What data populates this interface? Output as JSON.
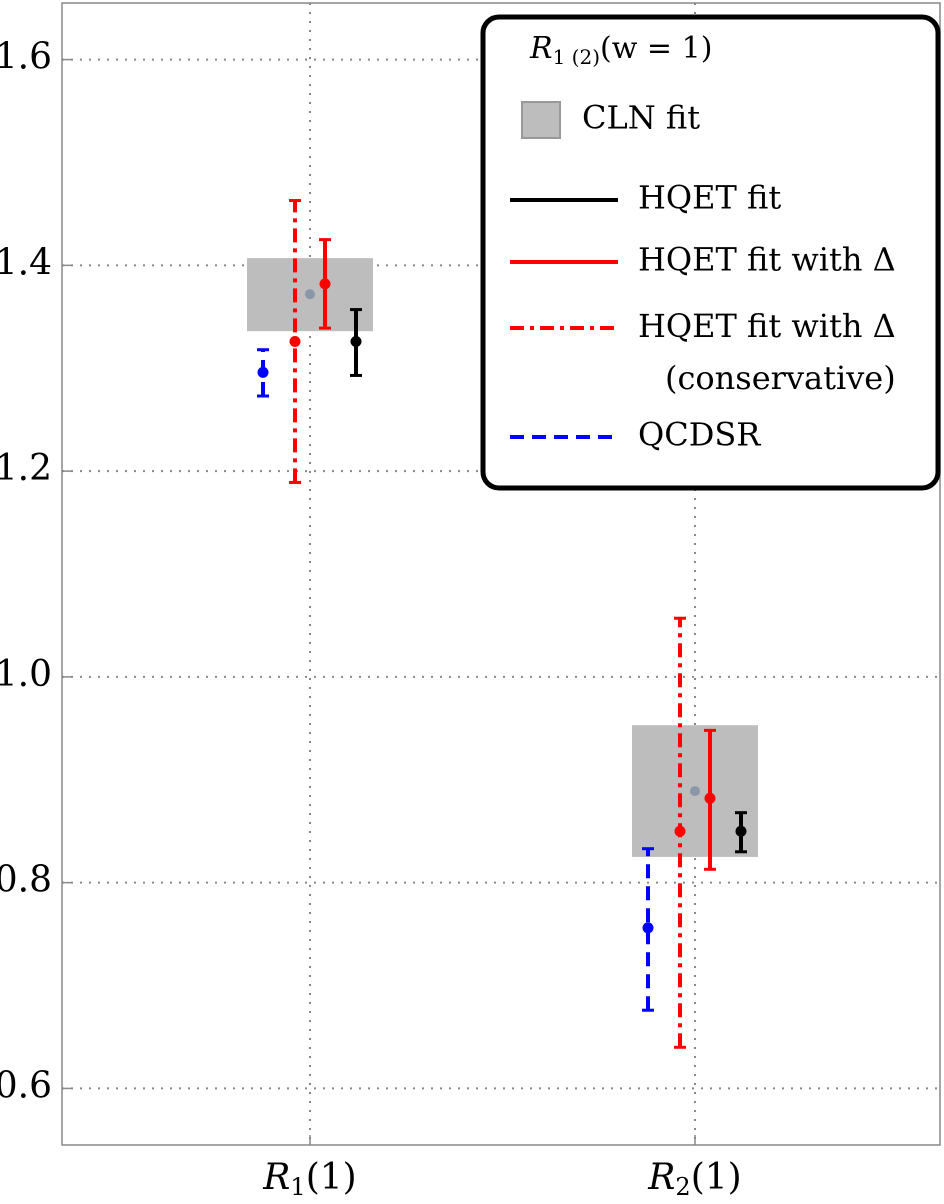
{
  "chart_data": {
    "type": "errorbar",
    "categories": [
      "R1(1)",
      "R2(1)"
    ],
    "ylim": [
      0.545,
      1.655
    ],
    "yticks": [
      0.6,
      0.8,
      {
        "value": 1,
        "label": "1.0"
      },
      1.2,
      1.4,
      1.6
    ],
    "grid": true,
    "legend_title": "R1 (2)(w = 1)",
    "legend_position": "upper right",
    "series": [
      {
        "name": "CLN fit",
        "kind": "band",
        "color": "#bdbdbd",
        "point_color": "#8a97a8",
        "values": [
          1.372,
          0.889
        ],
        "lower": [
          1.336,
          0.825
        ],
        "upper": [
          1.407,
          0.953
        ]
      },
      {
        "name": "HQET fit",
        "kind": "errorbar",
        "dash": "solid",
        "color": "#000000",
        "values": [
          1.326,
          0.85
        ],
        "lower": [
          1.293,
          0.83
        ],
        "upper": [
          1.357,
          0.868
        ]
      },
      {
        "name": "HQET fit with Δ",
        "kind": "errorbar",
        "dash": "solid",
        "color": "#ff0000",
        "values": [
          1.382,
          0.882
        ],
        "lower": [
          1.339,
          0.813
        ],
        "upper": [
          1.425,
          0.948
        ]
      },
      {
        "name": "HQET fit with Δ (conservative)",
        "kind": "errorbar",
        "dash": "dashdot",
        "color": "#ff0000",
        "values": [
          1.326,
          0.85
        ],
        "lower": [
          1.189,
          0.64
        ],
        "upper": [
          1.463,
          1.057
        ]
      },
      {
        "name": "QCDSR",
        "kind": "errorbar",
        "dash": "dashed",
        "color": "#0000ff",
        "values": [
          1.296,
          0.756
        ],
        "lower": [
          1.273,
          0.676
        ],
        "upper": [
          1.318,
          0.833
        ]
      }
    ]
  }
}
